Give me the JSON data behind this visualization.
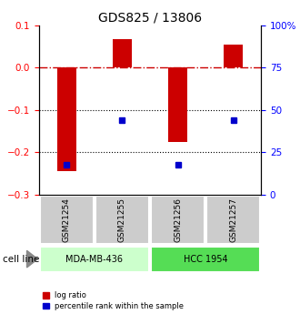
{
  "title": "GDS825 / 13806",
  "samples": [
    "GSM21254",
    "GSM21255",
    "GSM21256",
    "GSM21257"
  ],
  "log_ratios": [
    -0.245,
    0.068,
    -0.175,
    0.055
  ],
  "percentile_ranks_pct": [
    0.175,
    0.44,
    0.175,
    0.44
  ],
  "ylim_left": [
    -0.3,
    0.1
  ],
  "ylim_right": [
    0.0,
    1.0
  ],
  "yticks_left": [
    -0.3,
    -0.2,
    -0.1,
    0.0,
    0.1
  ],
  "yticks_right": [
    0.0,
    0.25,
    0.5,
    0.75,
    1.0
  ],
  "ytick_labels_right": [
    "0",
    "25",
    "50",
    "75",
    "100%"
  ],
  "bar_color": "#cc0000",
  "dot_color": "#0000cc",
  "cell_lines": [
    "MDA-MB-436",
    "HCC 1954"
  ],
  "cell_line_spans": [
    [
      0,
      2
    ],
    [
      2,
      4
    ]
  ],
  "cell_line_colors": [
    "#ccffcc",
    "#55dd55"
  ],
  "sample_box_color": "#cccccc",
  "hline_0_color": "#cc0000",
  "hline_m01_color": "#000000",
  "hline_m02_color": "#000000",
  "bar_width": 0.35,
  "legend_log_ratio": "log ratio",
  "legend_percentile": "percentile rank within the sample",
  "cell_line_label": "cell line"
}
